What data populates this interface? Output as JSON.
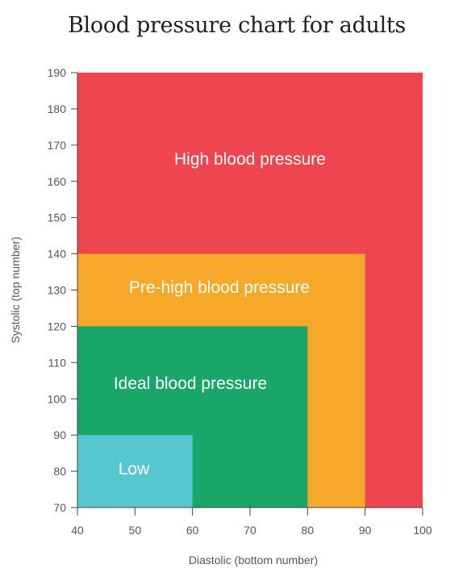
{
  "chart_data": {
    "type": "area",
    "title": "Blood pressure chart for adults",
    "xlabel": "Diastolic (bottom number)",
    "ylabel": "Systolic (top number)",
    "xlim": [
      40,
      100
    ],
    "ylim": [
      70,
      190
    ],
    "xticks": [
      40,
      50,
      60,
      70,
      80,
      90,
      100
    ],
    "yticks": [
      70,
      80,
      90,
      100,
      110,
      120,
      130,
      140,
      150,
      160,
      170,
      180,
      190
    ],
    "grid": false,
    "zones": [
      {
        "label": "High blood pressure",
        "x_max": 100,
        "y_max": 190,
        "color": "#ef4550"
      },
      {
        "label": "Pre-high blood pressure",
        "x_max": 90,
        "y_max": 140,
        "color": "#f6a928"
      },
      {
        "label": "Ideal blood pressure",
        "x_max": 80,
        "y_max": 120,
        "color": "#1aa569"
      },
      {
        "label": "Low",
        "x_max": 60,
        "y_max": 90,
        "color": "#57c7cf"
      }
    ]
  }
}
